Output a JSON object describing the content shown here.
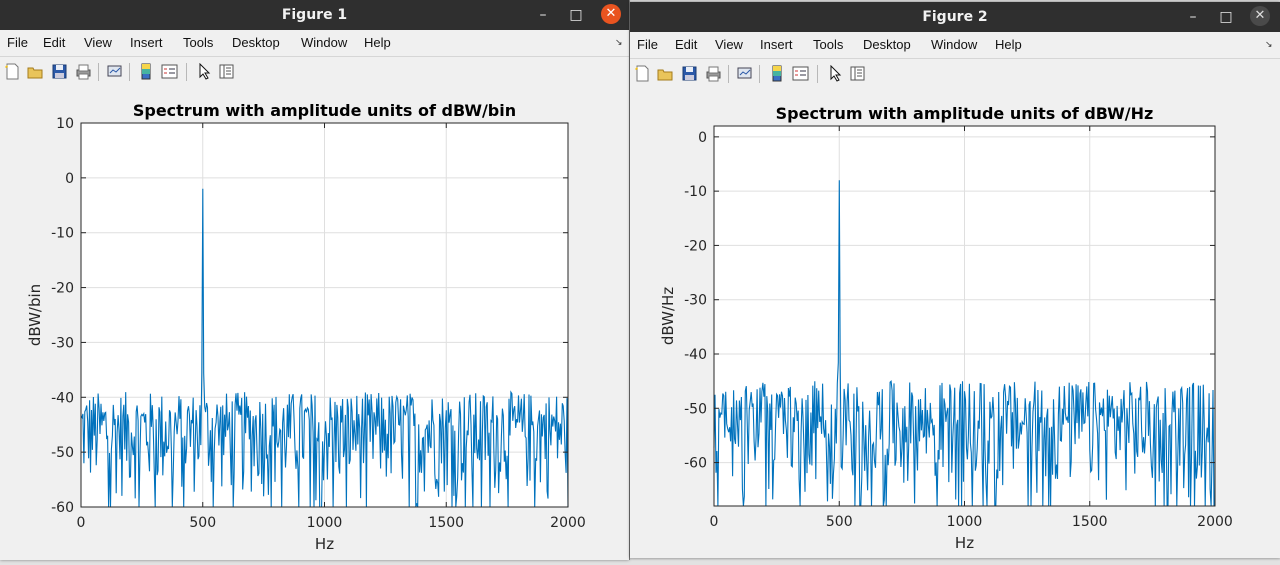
{
  "windows": [
    {
      "title": "Figure 1",
      "menu": [
        "File",
        "Edit",
        "View",
        "Insert",
        "Tools",
        "Desktop",
        "Window",
        "Help"
      ],
      "chart_data": {
        "type": "line",
        "title": "Spectrum with amplitude units of dBW/bin",
        "xlabel": "Hz",
        "ylabel": "dBW/bin",
        "xlim": [
          0,
          2000
        ],
        "ylim": [
          -60,
          10
        ],
        "xticks": [
          0,
          500,
          1000,
          1500,
          2000
        ],
        "yticks": [
          10,
          0,
          -10,
          -20,
          -30,
          -40,
          -50,
          -60
        ],
        "grid": true,
        "color": "#0072BD",
        "peak": {
          "x": 500,
          "y": -2
        },
        "noise_floor": {
          "min": -60,
          "max": -39
        }
      }
    },
    {
      "title": "Figure 2",
      "menu": [
        "File",
        "Edit",
        "View",
        "Insert",
        "Tools",
        "Desktop",
        "Window",
        "Help"
      ],
      "chart_data": {
        "type": "line",
        "title": "Spectrum with amplitude units of dBW/Hz",
        "xlabel": "Hz",
        "ylabel": "dBW/Hz",
        "xlim": [
          0,
          2000
        ],
        "ylim": [
          -68,
          2
        ],
        "xticks": [
          0,
          500,
          1000,
          1500,
          2000
        ],
        "yticks": [
          0,
          -10,
          -20,
          -30,
          -40,
          -50,
          -60
        ],
        "grid": true,
        "color": "#0072BD",
        "peak": {
          "x": 500,
          "y": -8
        },
        "noise_floor": {
          "min": -68,
          "max": -45
        }
      }
    }
  ]
}
